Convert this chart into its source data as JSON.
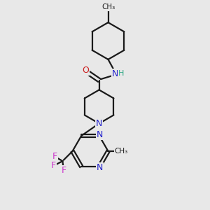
{
  "bg_color": "#e8e8e8",
  "bond_color": "#1a1a1a",
  "N_color": "#2222cc",
  "O_color": "#cc2020",
  "F_color": "#cc33cc",
  "H_color": "#33aa88",
  "figsize": [
    3.0,
    3.0
  ],
  "dpi": 100,
  "bond_lw": 1.6,
  "font_size": 8.5,
  "xlim": [
    0,
    10
  ],
  "ylim": [
    0,
    10
  ]
}
